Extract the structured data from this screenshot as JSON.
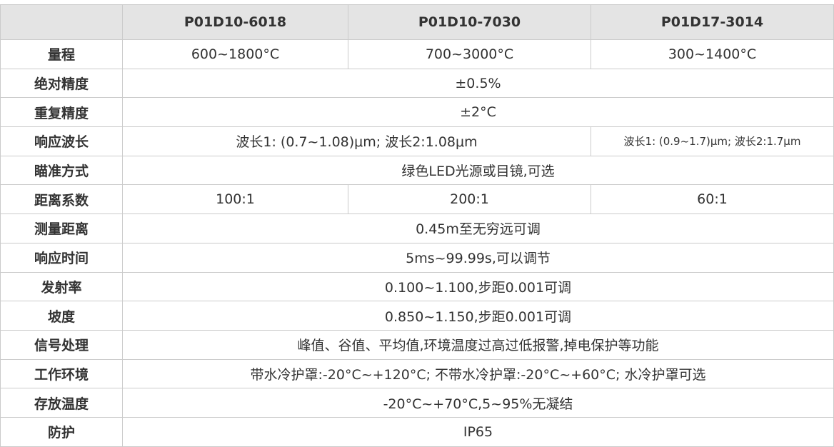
{
  "meta": {
    "component": "product-specification-table",
    "colors": {
      "header_background": "#e4e4e4",
      "border": "#cbcbcb",
      "text": "#333333",
      "cell_background": "#ffffff"
    }
  },
  "table": {
    "header": {
      "corner": "",
      "models": [
        "P01D10-6018",
        "P01D10-7030",
        "P01D17-3014"
      ]
    },
    "rows": [
      {
        "label": "量程",
        "c1": "600~1800°C",
        "c2": "700~3000°C",
        "c3": "300~1400°C"
      },
      {
        "label": "绝对精度",
        "merged": "±0.5%"
      },
      {
        "label": "重复精度",
        "merged": "±2°C"
      },
      {
        "label": "响应波长",
        "span2": "波长1: (0.7~1.08)μm; 波长2:1.08μm",
        "c3": "波长1: (0.9~1.7)μm; 波长2:1.7μm"
      },
      {
        "label": "瞄准方式",
        "merged": "绿色LED光源或目镜,可选"
      },
      {
        "label": "距离系数",
        "c1": "100:1",
        "c2": "200:1",
        "c3": "60:1"
      },
      {
        "label": "测量距离",
        "merged": "0.45m至无穷远可调"
      },
      {
        "label": "响应时间",
        "merged": "5ms~99.99s,可以调节"
      },
      {
        "label": "发射率",
        "merged": "0.100~1.100,步距0.001可调"
      },
      {
        "label": "坡度",
        "merged": "0.850~1.150,步距0.001可调"
      },
      {
        "label": "信号处理",
        "merged": "峰值、谷值、平均值,环境温度过高过低报警,掉电保护等功能"
      },
      {
        "label": "工作环境",
        "merged": "带水冷护罩:-20°C~+120°C; 不带水冷护罩:-20°C~+60°C; 水冷护罩可选"
      },
      {
        "label": "存放温度",
        "merged": "-20°C~+70°C,5~95%无凝结"
      },
      {
        "label": "防护",
        "merged": "IP65"
      }
    ]
  }
}
